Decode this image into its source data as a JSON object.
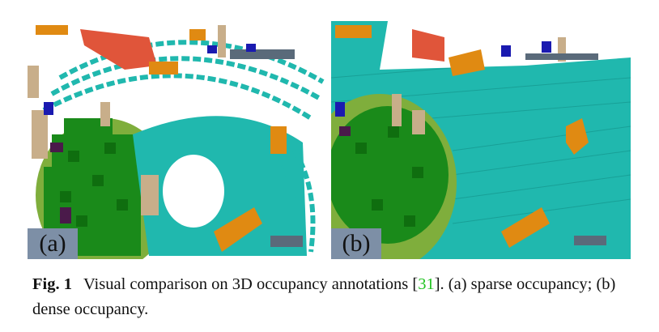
{
  "figure": {
    "panels": [
      {
        "id": "a",
        "tag": "(a)",
        "content": "sparse occupancy voxel rendering"
      },
      {
        "id": "b",
        "tag": "(b)",
        "content": "dense occupancy voxel rendering"
      }
    ],
    "caption": {
      "label": "Fig. 1",
      "text_before_cite": "Visual comparison on 3D occupancy annotations [",
      "cite": "31",
      "text_after_cite": "].  (a) sparse occupancy; (b) dense occupancy."
    }
  },
  "colors": {
    "driveable": "#20b8ae",
    "vegetation": "#1a8a1a",
    "terrain": "#7fae3c",
    "car": "#e08a12",
    "barrier": "#e0553a",
    "manmade": "#c8ae8a",
    "pedestrian": "#1a1ab0",
    "pole": "#5a6a7a",
    "other": "#4a1a4a"
  }
}
